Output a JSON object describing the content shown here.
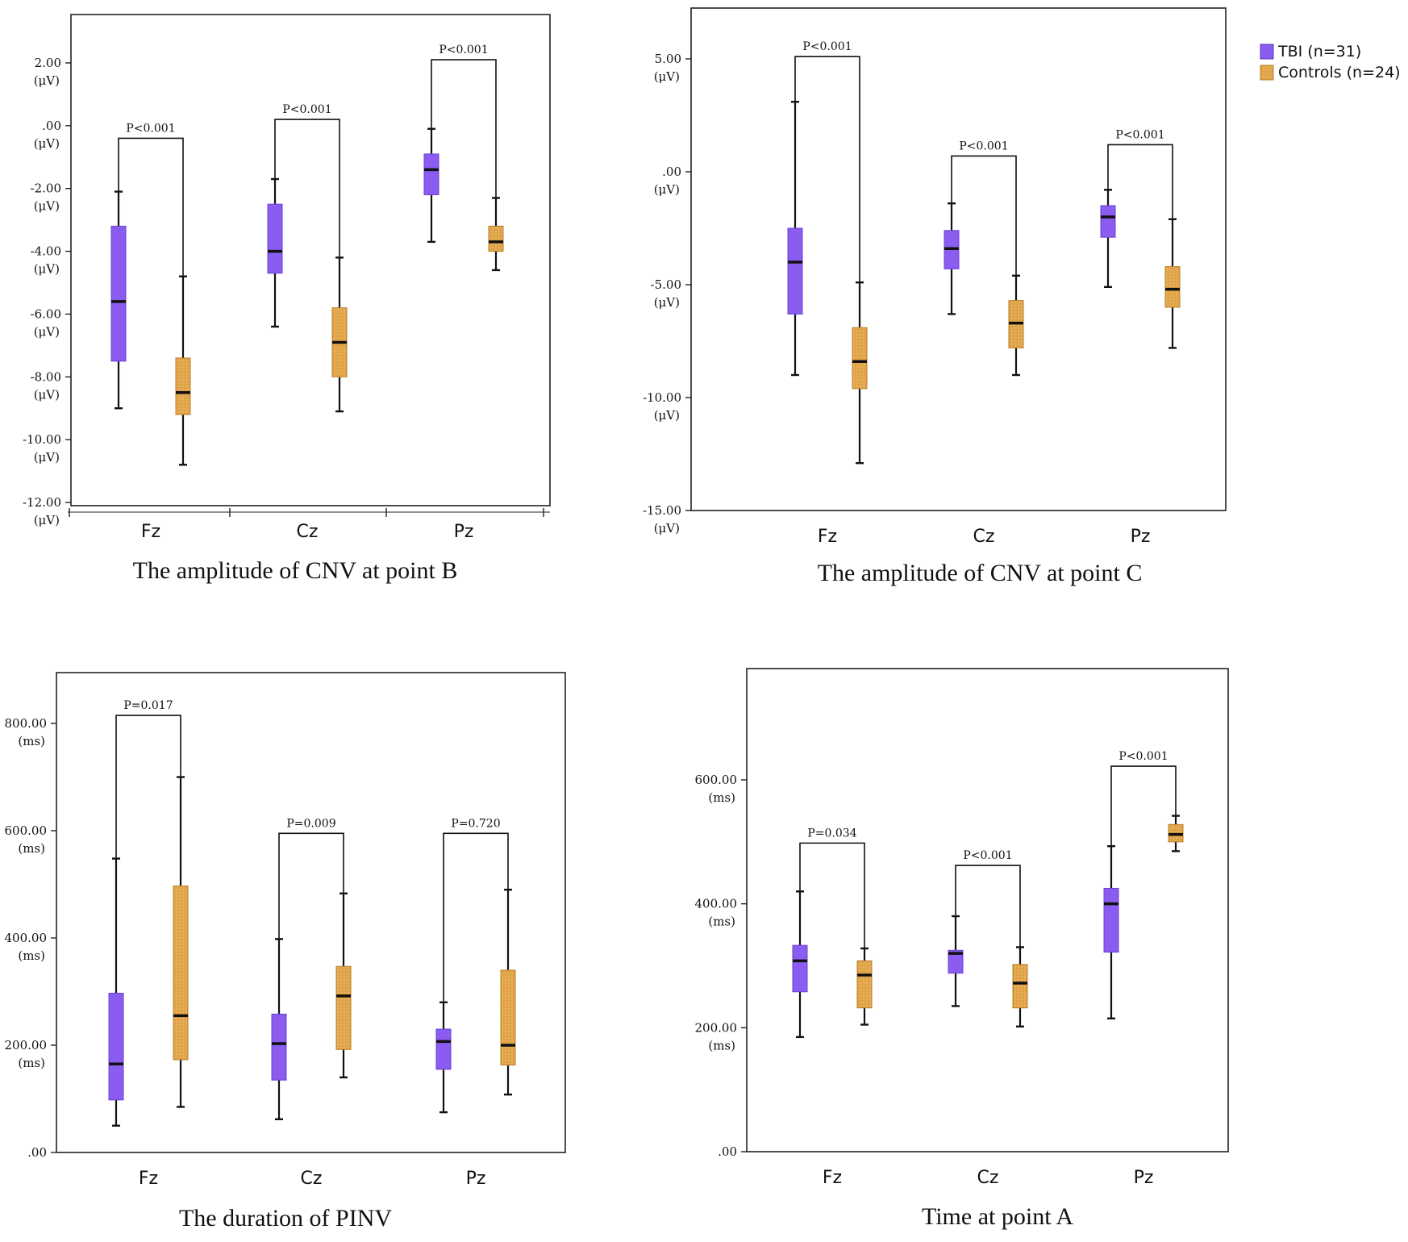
{
  "chart_data": [
    {
      "type": "box",
      "title": "The amplitude of CNV at point B",
      "categories": [
        "Fz",
        "Cz",
        "Pz"
      ],
      "ylim": [
        -12,
        3.5
      ],
      "yticks": [
        {
          "value": 2,
          "label": "2.00",
          "unit": "(μV)"
        },
        {
          "value": 0,
          "label": ".00",
          "unit": "(μV)"
        },
        {
          "value": -2,
          "label": "-2.00",
          "unit": "(μV)"
        },
        {
          "value": -4,
          "label": "-4.00",
          "unit": "(μV)"
        },
        {
          "value": -6,
          "label": "-6.00",
          "unit": "(μV)"
        },
        {
          "value": -8,
          "label": "-8.00",
          "unit": "(μV)"
        },
        {
          "value": -10,
          "label": "-10.00",
          "unit": "(μV)"
        },
        {
          "value": -12,
          "label": "-12.00",
          "unit": "(μV)"
        }
      ],
      "series": [
        {
          "name": "TBI (n=31)",
          "boxes": [
            {
              "min": -9.0,
              "q1": -7.5,
              "median": -5.6,
              "q3": -3.2,
              "max": -2.1
            },
            {
              "min": -6.4,
              "q1": -4.7,
              "median": -4.0,
              "q3": -2.5,
              "max": -1.7
            },
            {
              "min": -3.7,
              "q1": -2.2,
              "median": -1.4,
              "q3": -0.9,
              "max": -0.1
            }
          ]
        },
        {
          "name": "Controls (n=24)",
          "boxes": [
            {
              "min": -10.8,
              "q1": -9.2,
              "median": -8.5,
              "q3": -7.4,
              "max": -4.8
            },
            {
              "min": -9.1,
              "q1": -8.0,
              "median": -6.9,
              "q3": -5.8,
              "max": -4.2
            },
            {
              "min": -4.6,
              "q1": -4.0,
              "median": -3.7,
              "q3": -3.2,
              "max": -2.3
            }
          ]
        }
      ],
      "p_values": [
        "P<0.001",
        "P<0.001",
        "P<0.001"
      ],
      "bracket_tops": [
        -0.4,
        0.2,
        2.1
      ]
    },
    {
      "type": "box",
      "title": "The amplitude of CNV at point C",
      "categories": [
        "Fz",
        "Cz",
        "Pz"
      ],
      "ylim": [
        -15,
        7.2
      ],
      "yticks": [
        {
          "value": 5,
          "label": "5.00",
          "unit": "(μV)"
        },
        {
          "value": 0,
          "label": ".00",
          "unit": "(μV)"
        },
        {
          "value": -5,
          "label": "-5.00",
          "unit": "(μV)"
        },
        {
          "value": -10,
          "label": "-10.00",
          "unit": "(μV)"
        },
        {
          "value": -15,
          "label": "-15.00",
          "unit": "(μV)"
        }
      ],
      "series": [
        {
          "name": "TBI (n=31)",
          "boxes": [
            {
              "min": -9.0,
              "q1": -6.3,
              "median": -4.0,
              "q3": -2.5,
              "max": 3.1
            },
            {
              "min": -6.3,
              "q1": -4.3,
              "median": -3.4,
              "q3": -2.6,
              "max": -1.4
            },
            {
              "min": -5.1,
              "q1": -2.9,
              "median": -2.0,
              "q3": -1.5,
              "max": -0.8
            }
          ]
        },
        {
          "name": "Controls (n=24)",
          "boxes": [
            {
              "min": -12.9,
              "q1": -9.6,
              "median": -8.4,
              "q3": -6.9,
              "max": -4.9
            },
            {
              "min": -9.0,
              "q1": -7.8,
              "median": -6.7,
              "q3": -5.7,
              "max": -4.6
            },
            {
              "min": -7.8,
              "q1": -6.0,
              "median": -5.2,
              "q3": -4.2,
              "max": -2.1
            }
          ]
        }
      ],
      "p_values": [
        "P<0.001",
        "P<0.001",
        "P<0.001"
      ],
      "bracket_tops": [
        5.1,
        0.7,
        1.2
      ]
    },
    {
      "type": "box",
      "title": "The duration of PINV",
      "categories": [
        "Fz",
        "Cz",
        "Pz"
      ],
      "ylim": [
        0,
        900
      ],
      "yticks": [
        {
          "value": 800,
          "label": "800.00",
          "unit": "(ms)"
        },
        {
          "value": 600,
          "label": "600.00",
          "unit": "(ms)"
        },
        {
          "value": 400,
          "label": "400.00",
          "unit": "(ms)"
        },
        {
          "value": 200,
          "label": "200.00",
          "unit": "(ms)"
        },
        {
          "value": 0,
          "label": ".00",
          "unit": ""
        }
      ],
      "series": [
        {
          "name": "TBI (n=31)",
          "boxes": [
            {
              "min": 50,
              "q1": 98,
              "median": 165,
              "q3": 297,
              "max": 548
            },
            {
              "min": 62,
              "q1": 135,
              "median": 203,
              "q3": 258,
              "max": 398
            },
            {
              "min": 75,
              "q1": 155,
              "median": 207,
              "q3": 230,
              "max": 280
            }
          ]
        },
        {
          "name": "Controls (n=24)",
          "boxes": [
            {
              "min": 85,
              "q1": 173,
              "median": 255,
              "q3": 497,
              "max": 700
            },
            {
              "min": 140,
              "q1": 192,
              "median": 292,
              "q3": 347,
              "max": 483
            },
            {
              "min": 108,
              "q1": 163,
              "median": 200,
              "q3": 340,
              "max": 490
            }
          ]
        }
      ],
      "p_values": [
        "P=0.017",
        "P=0.009",
        "P=0.720"
      ],
      "bracket_tops": [
        815,
        595,
        595
      ]
    },
    {
      "type": "box",
      "title": "Time at point A",
      "categories": [
        "Fz",
        "Cz",
        "Pz"
      ],
      "ylim": [
        0,
        780
      ],
      "yticks": [
        {
          "value": 600,
          "label": "600.00",
          "unit": "(ms)"
        },
        {
          "value": 400,
          "label": "400.00",
          "unit": "(ms)"
        },
        {
          "value": 200,
          "label": "200.00",
          "unit": "(ms)"
        },
        {
          "value": 0,
          "label": ".00",
          "unit": ""
        }
      ],
      "series": [
        {
          "name": "TBI (n=31)",
          "boxes": [
            {
              "min": 185,
              "q1": 258,
              "median": 308,
              "q3": 333,
              "max": 420
            },
            {
              "min": 235,
              "q1": 288,
              "median": 320,
              "q3": 325,
              "max": 380
            },
            {
              "min": 215,
              "q1": 322,
              "median": 400,
              "q3": 425,
              "max": 493
            }
          ]
        },
        {
          "name": "Controls (n=24)",
          "boxes": [
            {
              "min": 205,
              "q1": 232,
              "median": 285,
              "q3": 308,
              "max": 328
            },
            {
              "min": 202,
              "q1": 232,
              "median": 272,
              "q3": 302,
              "max": 330
            },
            {
              "min": 485,
              "q1": 500,
              "median": 512,
              "q3": 528,
              "max": 542
            }
          ]
        }
      ],
      "p_values": [
        "P=0.034",
        "P<0.001",
        "P<0.001"
      ],
      "bracket_tops": [
        498,
        462,
        622
      ]
    }
  ],
  "legend": [
    {
      "label": "TBI (n=31)",
      "color": "#8a5cf0"
    },
    {
      "label": "Controls (n=24)",
      "color": "#e3a84d"
    }
  ],
  "colors": {
    "tbi": "#8a5cf0",
    "controls": "#e3a84d",
    "controls_edge": "#b97c27"
  }
}
